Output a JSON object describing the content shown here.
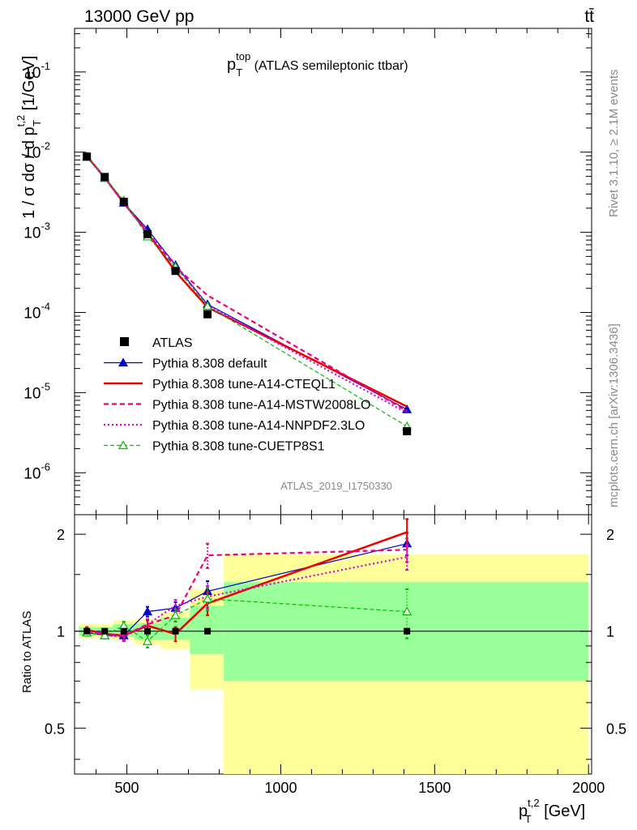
{
  "header": {
    "beam": "13000 GeV pp",
    "process": "tt̄"
  },
  "side_labels": {
    "rivet": "Rivet 3.1.10, ≥ 2.1M events",
    "mcplots": "mcplots.cern.ch [arXiv:1306.3436]"
  },
  "analysis_id": "ATLAS_2019_I1750330",
  "chart_data": {
    "type": "line",
    "title_main": "p",
    "title_sup": "top",
    "title_sub": "T",
    "title_rest": " (ATLAS semileptonic ttbar)",
    "xlabel_main": "p",
    "xlabel_sup": "t,2",
    "xlabel_sub": "T",
    "xlabel_rest": " [GeV]",
    "ylabel_main": "1 / σ dσ / d p",
    "ylabel_sup": "t,2",
    "ylabel_sub": "T",
    "ylabel_rest": " [1/GeV]",
    "ratio_ylabel": "Ratio to ATLAS",
    "xlim": [
      330,
      2010
    ],
    "ylim_top": [
      3e-07,
      0.35
    ],
    "ylim_ratio": [
      0.36,
      2.3
    ],
    "y_log": true,
    "ratio_log": true,
    "x_ticks": [
      500,
      1000,
      1500,
      2000
    ],
    "x_tick_labels": [
      "500",
      "1000",
      "1500",
      "2000"
    ],
    "y_ticks_top": [
      1e-06,
      1e-05,
      0.0001,
      0.001,
      0.01,
      0.1
    ],
    "y_tick_labels_top": [
      [
        "10",
        "-6"
      ],
      [
        "10",
        "-5"
      ],
      [
        "10",
        "-4"
      ],
      [
        "10",
        "-3"
      ],
      [
        "10",
        "-2"
      ],
      [
        "10",
        "-1"
      ]
    ],
    "ratio_ticks": [
      0.5,
      1,
      2
    ],
    "ratio_tick_labels": [
      "0.5",
      "1",
      "2"
    ],
    "x": [
      370,
      428,
      490,
      567,
      658,
      762,
      1410
    ],
    "data": {
      "name": "ATLAS",
      "values": [
        0.0088,
        0.0049,
        0.0024,
        0.00095,
        0.00033,
        9.5e-05,
        3.3e-06
      ],
      "errors": [
        0.0004,
        0.0002,
        0.0001,
        5e-05,
        2e-05,
        6e-06,
        3e-07
      ]
    },
    "bands": [
      {
        "xlo": 345,
        "xhi": 400,
        "green": [
          0.97,
          1.03
        ],
        "yellow": [
          0.95,
          1.05
        ]
      },
      {
        "xlo": 400,
        "xhi": 455,
        "green": [
          0.97,
          1.03
        ],
        "yellow": [
          0.95,
          1.05
        ]
      },
      {
        "xlo": 455,
        "xhi": 525,
        "green": [
          0.96,
          1.05
        ],
        "yellow": [
          0.94,
          1.08
        ]
      },
      {
        "xlo": 525,
        "xhi": 610,
        "green": [
          0.94,
          1.06
        ],
        "yellow": [
          0.91,
          1.09
        ]
      },
      {
        "xlo": 610,
        "xhi": 705,
        "green": [
          0.94,
          1.1
        ],
        "yellow": [
          0.88,
          1.15
        ]
      },
      {
        "xlo": 705,
        "xhi": 815,
        "green": [
          0.85,
          1.2
        ],
        "yellow": [
          0.66,
          1.35
        ]
      },
      {
        "xlo": 815,
        "xhi": 2000,
        "green": [
          0.7,
          1.42
        ],
        "yellow": [
          0.36,
          1.73
        ]
      }
    ],
    "series": [
      {
        "name": "Pythia 8.308 default",
        "color": "#0000cc",
        "dash": "",
        "width": 1.2,
        "marker": "triangle-filled",
        "ratio": [
          0.99,
          0.97,
          0.97,
          1.15,
          1.18,
          1.33,
          1.87
        ],
        "ratio_err": [
          0.02,
          0.02,
          0.03,
          0.04,
          0.05,
          0.1,
          0.15
        ]
      },
      {
        "name": "Pythia 8.308 tune-A14-CTEQL1",
        "color": "#ee0000",
        "dash": "",
        "width": 2.5,
        "marker": "none",
        "ratio": [
          1.01,
          0.98,
          0.97,
          1.04,
          0.98,
          1.22,
          2.03
        ],
        "ratio_err": [
          0.02,
          0.02,
          0.03,
          0.04,
          0.05,
          0.1,
          0.2
        ]
      },
      {
        "name": "Pythia 8.308 tune-A14-MSTW2008LO",
        "color": "#ee0077",
        "dash": "6,4",
        "width": 2.2,
        "marker": "none",
        "ratio": [
          1.0,
          0.98,
          0.97,
          1.05,
          1.12,
          1.72,
          1.79
        ],
        "ratio_err": [
          0.02,
          0.02,
          0.03,
          0.04,
          0.05,
          0.15,
          0.15
        ]
      },
      {
        "name": "Pythia 8.308 tune-A14-NNPDF2.3LO",
        "color": "#dd00dd",
        "dash": "2,3",
        "width": 2.2,
        "marker": "none",
        "ratio": [
          1.0,
          0.97,
          0.96,
          1.05,
          1.2,
          1.28,
          1.7
        ],
        "ratio_err": [
          0.02,
          0.02,
          0.03,
          0.04,
          0.05,
          0.1,
          0.15
        ]
      },
      {
        "name": "Pythia 8.308 tune-CUETP8S1",
        "color": "#00bb00",
        "dash": "5,3",
        "width": 1.2,
        "marker": "triangle-open",
        "ratio": [
          0.99,
          0.97,
          1.04,
          0.93,
          1.12,
          1.26,
          1.15
        ],
        "ratio_err": [
          0.02,
          0.02,
          0.03,
          0.04,
          0.05,
          0.1,
          0.2
        ]
      }
    ],
    "legend_placement": "lower-left"
  }
}
